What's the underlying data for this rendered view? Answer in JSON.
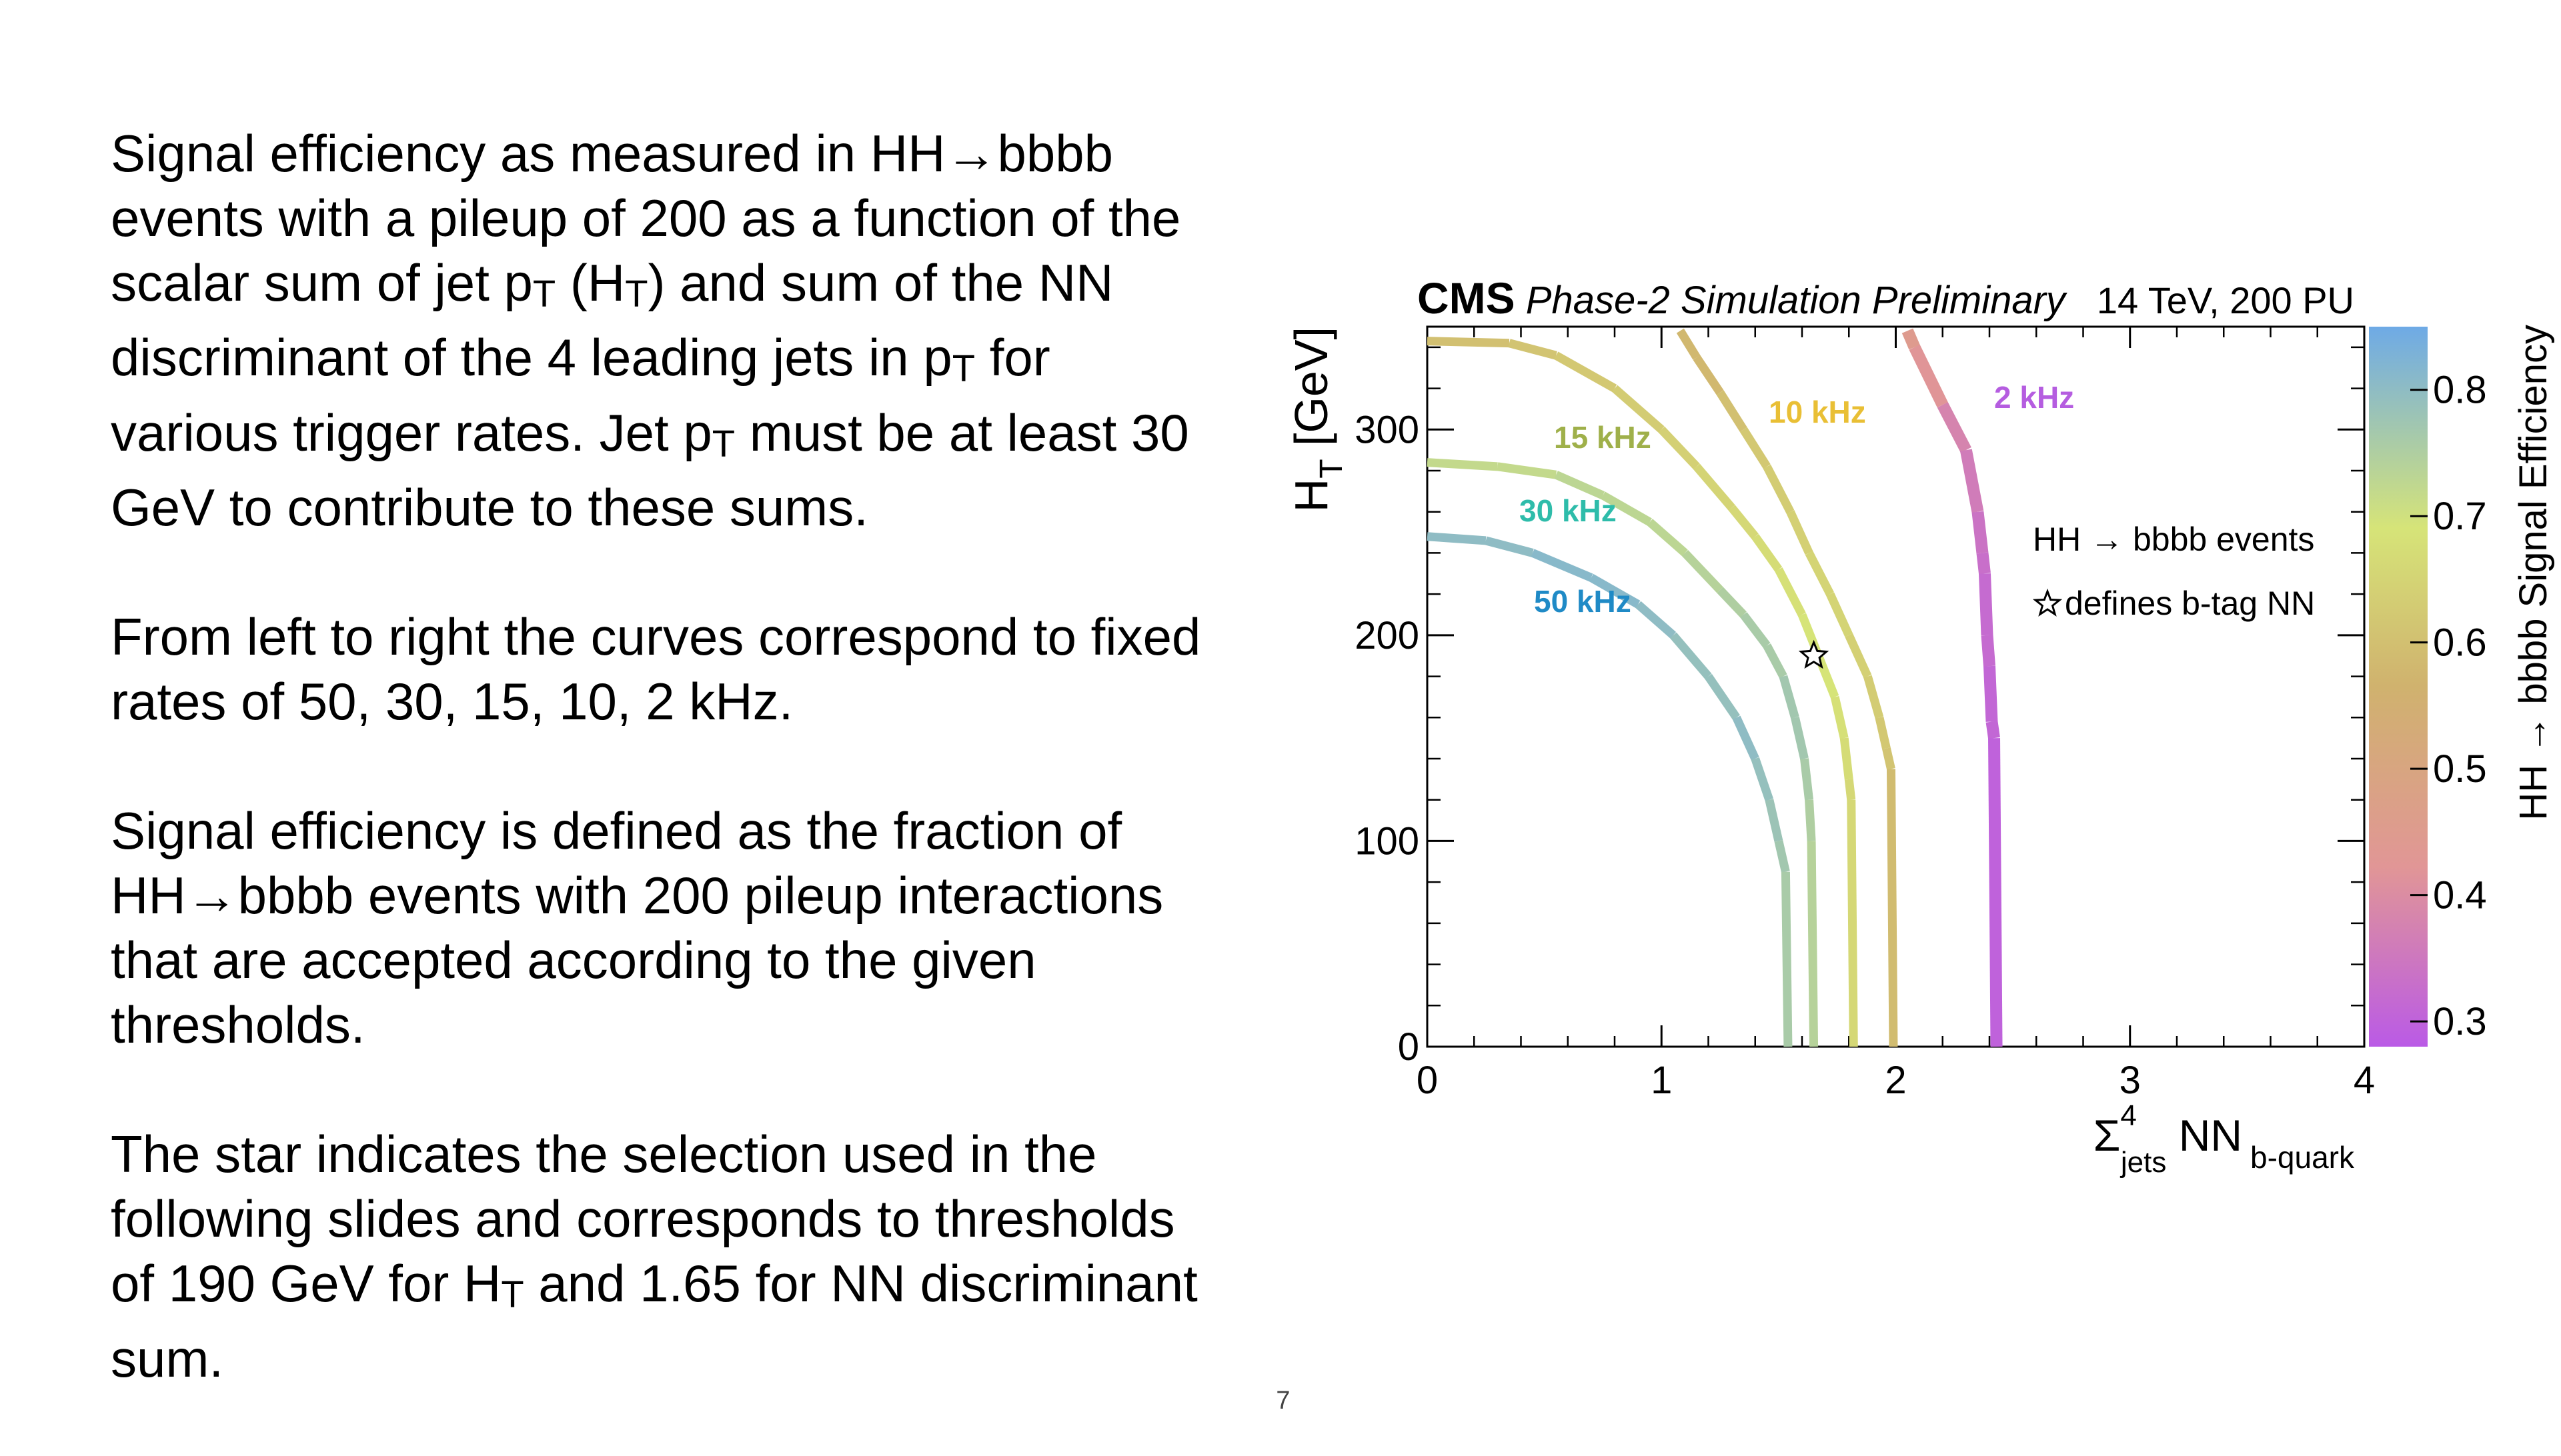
{
  "slide": {
    "paragraphs": [
      {
        "id": "p1",
        "runs": [
          {
            "t": "Signal efficiency as measured in HH"
          },
          {
            "t": "→"
          },
          {
            "t": "bbbb events with a pileup of 200 as a function of the scalar sum of jet p"
          },
          {
            "t": "T",
            "sub": true
          },
          {
            "t": " (H"
          },
          {
            "t": "T",
            "sub": true
          },
          {
            "t": ") and sum of the NN discriminant of the 4 leading jets in p"
          },
          {
            "t": "T",
            "sub": true
          },
          {
            "t": " for various trigger rates. Jet p"
          },
          {
            "t": "T",
            "sub": true
          },
          {
            "t": " must be at least 30 GeV to contribute to these sums."
          }
        ]
      },
      {
        "id": "p2",
        "runs": [
          {
            "t": "From left to right the curves correspond to fixed rates of 50, 30, 15, 10, 2 kHz."
          }
        ]
      },
      {
        "id": "p3",
        "runs": [
          {
            "t": "Signal efficiency is defined as the fraction of HH"
          },
          {
            "t": "→"
          },
          {
            "t": "bbbb events with 200 pileup interactions that are accepted according to the given thresholds."
          }
        ]
      },
      {
        "id": "p4",
        "runs": [
          {
            "t": "The star indicates the selection used in the following slides and corresponds to thresholds of 190 GeV for H"
          },
          {
            "t": "T",
            "sub": true
          },
          {
            "t": " and 1.65 for NN discriminant sum."
          }
        ]
      }
    ],
    "page_number": "7"
  },
  "chart_data": {
    "type": "line",
    "header": {
      "experiment": "CMS",
      "label": "Phase-2 Simulation Preliminary",
      "energy": "14 TeV, 200 PU"
    },
    "xlabel": {
      "sym": "Σ",
      "sup": "4",
      "sub": "jets",
      "mid": " NN",
      "tail": "b-quark"
    },
    "ylabel": {
      "main": "H",
      "sub": "T",
      "unit": " [GeV]"
    },
    "xlim": [
      0,
      4
    ],
    "ylim": [
      0,
      350
    ],
    "xticks": [
      "0",
      "1",
      "2",
      "3",
      "4"
    ],
    "yticks": [
      "0",
      "100",
      "200",
      "300"
    ],
    "colorbar": {
      "label": "HH → bbbb Signal Efficiency",
      "range": [
        0.28,
        0.85
      ],
      "ticks": [
        "0.3",
        "0.4",
        "0.5",
        "0.6",
        "0.7",
        "0.8"
      ]
    },
    "legend": {
      "text": "HH → bbbb events",
      "star_text": "defines b-tag NN"
    },
    "series": [
      {
        "name": "50 kHz",
        "label_color": "#1f8ac6",
        "points": [
          [
            0,
            248
          ],
          [
            0.25,
            246
          ],
          [
            0.45,
            240
          ],
          [
            0.7,
            228
          ],
          [
            0.9,
            215
          ],
          [
            1.05,
            200
          ],
          [
            1.2,
            180
          ],
          [
            1.32,
            160
          ],
          [
            1.4,
            140
          ],
          [
            1.46,
            120
          ],
          [
            1.5,
            100
          ],
          [
            1.53,
            85
          ],
          [
            1.54,
            0
          ]
        ],
        "efficiency": [
          0.8,
          0.8,
          0.81,
          0.81,
          0.8,
          0.79,
          0.79,
          0.8,
          0.79,
          0.78,
          0.77,
          0.76,
          0.78
        ]
      },
      {
        "name": "30 kHz",
        "label_color": "#2ebcaa",
        "points": [
          [
            0,
            284
          ],
          [
            0.3,
            282
          ],
          [
            0.55,
            278
          ],
          [
            0.75,
            268
          ],
          [
            0.95,
            255
          ],
          [
            1.1,
            240
          ],
          [
            1.25,
            222
          ],
          [
            1.35,
            210
          ],
          [
            1.45,
            195
          ],
          [
            1.52,
            180
          ],
          [
            1.57,
            160
          ],
          [
            1.61,
            140
          ],
          [
            1.63,
            120
          ],
          [
            1.64,
            100
          ],
          [
            1.65,
            0
          ]
        ],
        "efficiency": [
          0.72,
          0.72,
          0.73,
          0.73,
          0.73,
          0.74,
          0.75,
          0.76,
          0.76,
          0.77,
          0.77,
          0.76,
          0.75,
          0.74,
          0.76
        ]
      },
      {
        "name": "15 kHz",
        "label_color": "#9fb04a",
        "points": [
          [
            0,
            343
          ],
          [
            0.35,
            342
          ],
          [
            0.55,
            336
          ],
          [
            0.8,
            320
          ],
          [
            1.0,
            300
          ],
          [
            1.15,
            282
          ],
          [
            1.3,
            262
          ],
          [
            1.4,
            248
          ],
          [
            1.5,
            232
          ],
          [
            1.6,
            210
          ],
          [
            1.67,
            190
          ],
          [
            1.74,
            170
          ],
          [
            1.78,
            150
          ],
          [
            1.8,
            130
          ],
          [
            1.81,
            120
          ],
          [
            1.82,
            0
          ]
        ],
        "efficiency": [
          0.6,
          0.61,
          0.62,
          0.63,
          0.64,
          0.65,
          0.66,
          0.67,
          0.68,
          0.69,
          0.69,
          0.68,
          0.67,
          0.66,
          0.66,
          0.68
        ]
      },
      {
        "name": "10 kHz",
        "label_color": "#e9bf35",
        "points": [
          [
            1.08,
            348
          ],
          [
            1.15,
            335
          ],
          [
            1.25,
            318
          ],
          [
            1.35,
            300
          ],
          [
            1.45,
            282
          ],
          [
            1.55,
            260
          ],
          [
            1.63,
            240
          ],
          [
            1.72,
            220
          ],
          [
            1.8,
            200
          ],
          [
            1.88,
            180
          ],
          [
            1.93,
            160
          ],
          [
            1.96,
            145
          ],
          [
            1.98,
            135
          ],
          [
            1.99,
            0
          ]
        ],
        "efficiency": [
          0.58,
          0.58,
          0.6,
          0.62,
          0.63,
          0.64,
          0.65,
          0.65,
          0.64,
          0.63,
          0.62,
          0.61,
          0.59,
          0.59
        ]
      },
      {
        "name": "2 kHz",
        "label_color": "#b55de0",
        "points": [
          [
            2.05,
            348
          ],
          [
            2.08,
            340
          ],
          [
            2.2,
            312
          ],
          [
            2.3,
            290
          ],
          [
            2.35,
            260
          ],
          [
            2.37,
            240
          ],
          [
            2.38,
            230
          ],
          [
            2.39,
            200
          ],
          [
            2.4,
            185
          ],
          [
            2.41,
            158
          ],
          [
            2.42,
            150
          ],
          [
            2.43,
            0
          ]
        ],
        "efficiency": [
          0.45,
          0.42,
          0.38,
          0.36,
          0.34,
          0.33,
          0.32,
          0.32,
          0.31,
          0.31,
          0.3,
          0.3
        ]
      }
    ],
    "star": {
      "x": 1.65,
      "y": 190
    }
  }
}
